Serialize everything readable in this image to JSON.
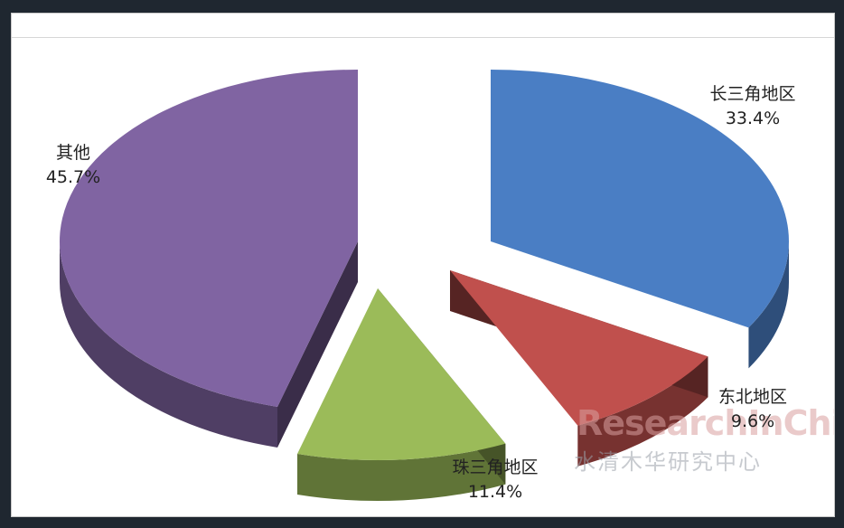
{
  "chart_data": {
    "type": "pie",
    "title": "",
    "slices": [
      {
        "label": "长三角地区",
        "value": 33.4,
        "display": "33.4%",
        "color": "#4a7ec4"
      },
      {
        "label": "东北地区",
        "value": 9.6,
        "display": "9.6%",
        "color": "#c0504d"
      },
      {
        "label": "珠三角地区",
        "value": 11.4,
        "display": "11.4%",
        "color": "#9bbb59"
      },
      {
        "label": "其他",
        "value": 45.7,
        "display": "45.7%",
        "color": "#8064a2"
      }
    ]
  },
  "watermark": {
    "brand": "ResearchInChina",
    "chinese": "水清木华研究中心"
  }
}
